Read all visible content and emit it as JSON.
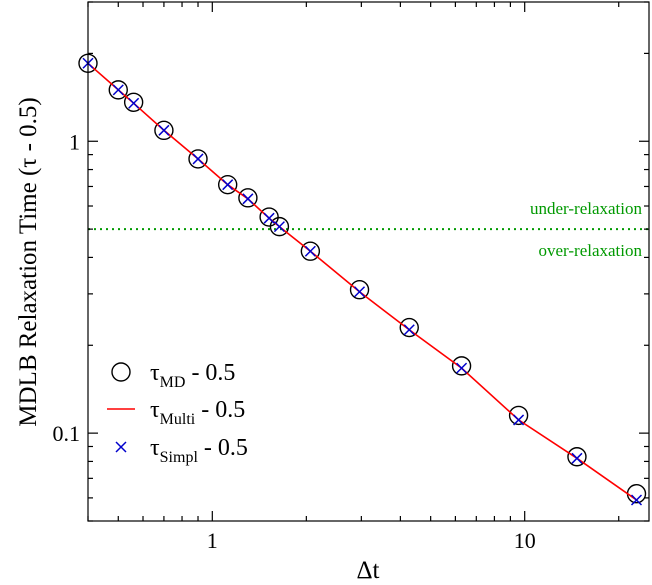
{
  "chart_data": {
    "type": "scatter",
    "xlabel": "Δt",
    "ylabel": "MDLB Relaxation Time (τ - 0.5)",
    "xscale": "log",
    "yscale": "log",
    "xlim": [
      0.4,
      25
    ],
    "ylim": [
      0.05,
      3
    ],
    "x_ticks": [
      {
        "value": 1,
        "label": "1"
      },
      {
        "value": 10,
        "label": "10"
      }
    ],
    "y_ticks": [
      {
        "value": 0.1,
        "label": "0.1"
      },
      {
        "value": 1,
        "label": "1"
      }
    ],
    "grid": false,
    "legend_position": "bottom-left",
    "reference_line": {
      "y": 0.5,
      "color": "#009900",
      "style": "dotted",
      "label_above": "under-relaxation",
      "label_below": "over-relaxation"
    },
    "series": [
      {
        "legend_symbol": "τ",
        "legend_subscript": "MD",
        "legend_suffix": " - 0.5",
        "marker": "circle",
        "color": "#000000",
        "x": [
          0.4,
          0.5,
          0.56,
          0.7,
          0.9,
          1.12,
          1.3,
          1.52,
          1.64,
          2.06,
          2.96,
          4.27,
          6.28,
          9.56,
          14.7,
          22.8
        ],
        "y": [
          1.85,
          1.5,
          1.36,
          1.09,
          0.87,
          0.71,
          0.64,
          0.55,
          0.51,
          0.42,
          0.31,
          0.23,
          0.17,
          0.115,
          0.083,
          0.062
        ]
      },
      {
        "legend_symbol": "τ",
        "legend_subscript": "Multi",
        "legend_suffix": " - 0.5",
        "marker": "line",
        "color": "#ff0000",
        "x": [
          0.4,
          0.5,
          0.56,
          0.7,
          0.9,
          1.12,
          1.3,
          1.52,
          1.64,
          2.06,
          2.96,
          4.27,
          6.28,
          9.56,
          14.7,
          22.8
        ],
        "y": [
          1.85,
          1.5,
          1.35,
          1.09,
          0.87,
          0.71,
          0.635,
          0.545,
          0.51,
          0.42,
          0.305,
          0.226,
          0.167,
          0.111,
          0.082,
          0.059
        ]
      },
      {
        "legend_symbol": "τ",
        "legend_subscript": "Simpl",
        "legend_suffix": " - 0.5",
        "marker": "x",
        "color": "#0000cc",
        "x": [
          0.4,
          0.5,
          0.56,
          0.7,
          0.9,
          1.12,
          1.3,
          1.52,
          1.64,
          2.06,
          2.96,
          4.27,
          6.28,
          9.56,
          14.7,
          22.8
        ],
        "y": [
          1.85,
          1.5,
          1.35,
          1.09,
          0.87,
          0.71,
          0.635,
          0.545,
          0.51,
          0.42,
          0.305,
          0.226,
          0.167,
          0.111,
          0.082,
          0.059
        ]
      }
    ]
  }
}
